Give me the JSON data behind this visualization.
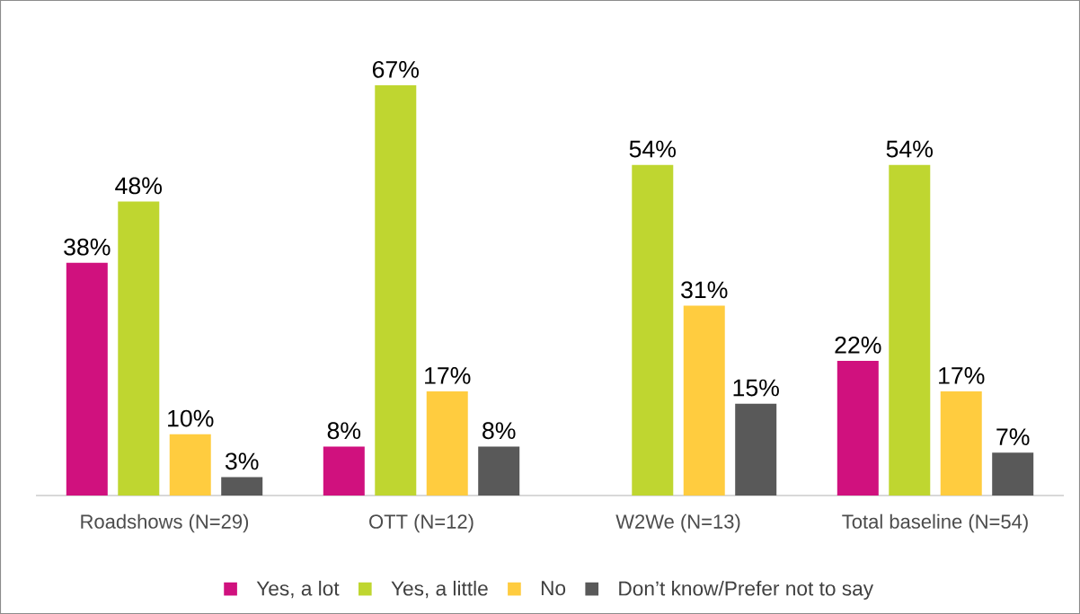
{
  "chart_data": {
    "type": "bar",
    "categories": [
      "Roadshows (N=29)",
      "OTT (N=12)",
      "W2We (N=13)",
      "Total baseline (N=54)"
    ],
    "series": [
      {
        "name": "Yes, a lot",
        "color": "#d0117e",
        "values": [
          38,
          8,
          null,
          22
        ],
        "value_labels": [
          "38%",
          "8%",
          null,
          "22%"
        ]
      },
      {
        "name": "Yes, a little",
        "color": "#bfd630",
        "values": [
          48,
          67,
          54,
          54
        ],
        "value_labels": [
          "48%",
          "67%",
          "54%",
          "54%"
        ]
      },
      {
        "name": "No",
        "color": "#ffcc3f",
        "values": [
          10,
          17,
          31,
          17
        ],
        "value_labels": [
          "10%",
          "17%",
          "31%",
          "17%"
        ]
      },
      {
        "name": "Don’t know/Prefer not to say",
        "color": "#595959",
        "values": [
          3,
          8,
          15,
          7
        ],
        "value_labels": [
          "3%",
          "8%",
          "15%",
          "7%"
        ]
      }
    ],
    "legend": "bottom",
    "tick_labels": "x"
  }
}
